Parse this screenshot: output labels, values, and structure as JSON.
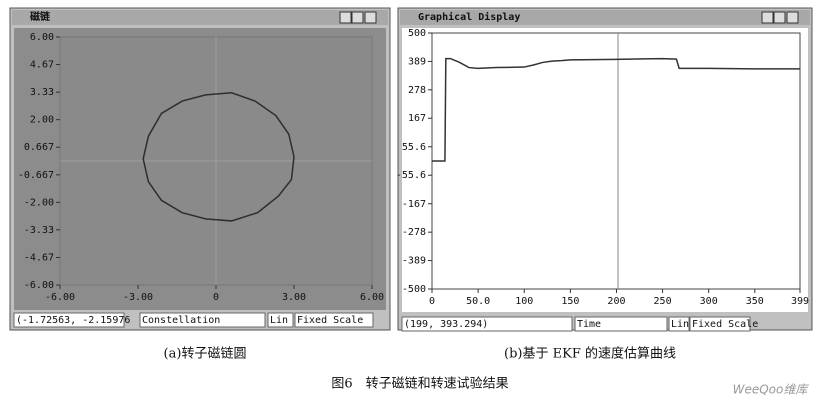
{
  "chart_data": [
    {
      "type": "line",
      "window_title": "磁链",
      "color": "#2e2e2e",
      "x": [
        3.0,
        2.8,
        2.3,
        1.5,
        0.6,
        -0.4,
        -1.3,
        -2.1,
        -2.6,
        -2.8,
        -2.6,
        -2.1,
        -1.3,
        -0.4,
        0.6,
        1.6,
        2.4,
        2.9,
        3.0
      ],
      "values": [
        0.2,
        1.3,
        2.2,
        2.9,
        3.3,
        3.2,
        2.9,
        2.3,
        1.2,
        0.1,
        -1.0,
        -1.9,
        -2.5,
        -2.8,
        -2.9,
        -2.5,
        -1.7,
        -0.9,
        0.2
      ],
      "xlim": [
        -6,
        6
      ],
      "ylim": [
        -6,
        6
      ],
      "xticks": [
        {
          "value": -6,
          "label": "-6.00"
        },
        {
          "value": -3,
          "label": "-3.00"
        },
        0,
        {
          "value": 3,
          "label": "3.00"
        },
        {
          "value": 6,
          "label": "6.00"
        }
      ],
      "yticks": [
        {
          "value": 6,
          "label": "6.00"
        },
        4.67,
        3.33,
        {
          "value": 2,
          "label": "2.00"
        },
        0.667,
        -0.667,
        {
          "value": -2,
          "label": "-2.00"
        },
        -3.33,
        -4.67,
        {
          "value": -6,
          "label": "-6.00"
        }
      ],
      "grid": false,
      "status": [
        "(-1.72563, -2.15976",
        "Constellation",
        "Lin",
        "Fixed Scale"
      ]
    },
    {
      "type": "line",
      "window_title": "Graphical Display",
      "color": "#333333",
      "x": [
        0,
        14,
        15,
        20,
        30,
        40,
        50,
        70,
        100,
        110,
        120,
        130,
        140,
        150,
        200,
        250,
        265,
        268,
        270,
        300,
        350,
        399
      ],
      "values": [
        0,
        0,
        400,
        400,
        385,
        365,
        362,
        365,
        367,
        375,
        385,
        390,
        392,
        395,
        397,
        400,
        398,
        362,
        362,
        362,
        360,
        360
      ],
      "xlim": [
        0,
        399
      ],
      "ylim": [
        -500,
        500
      ],
      "xticks": [
        0,
        {
          "value": 50,
          "label": "50.0"
        },
        100,
        150,
        200,
        250,
        300,
        350,
        399
      ],
      "yticks": [
        500,
        389,
        278,
        167,
        55.6,
        -55.6,
        -167,
        -278,
        -389,
        -500
      ],
      "grid": false,
      "status": [
        "(199, 393.294)",
        "Time",
        "Lin",
        "Fixed Scale"
      ]
    }
  ],
  "captions": {
    "a": "(a)转子磁链圆",
    "b": "(b)基于 EKF 的速度估算曲线",
    "figure": "图6　转子磁链和转速试验结果"
  },
  "watermark": "WeeQoo维库"
}
